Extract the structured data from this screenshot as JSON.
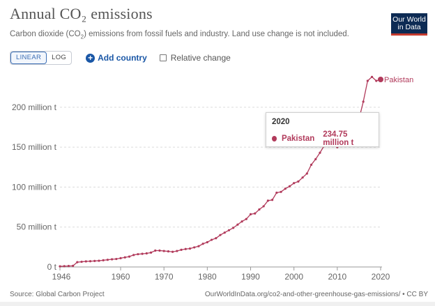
{
  "header": {
    "title": "Annual CO₂ emissions",
    "subtitle_before": "Carbon dioxide (CO",
    "subtitle_sub": "2",
    "subtitle_after": ") emissions from fossil fuels and industry. Land use change is not included.",
    "logo_line1": "Our World",
    "logo_line2": "in Data",
    "logo_colors": {
      "background": "#0d2b54",
      "accent": "#c53b2e"
    }
  },
  "controls": {
    "linear_label": "LINEAR",
    "log_label": "LOG",
    "add_country_label": "Add country",
    "relative_label": "Relative change",
    "add_icon": "plus-circle-icon"
  },
  "tooltip": {
    "year": "2020",
    "entity": "Pakistan",
    "value": "234.75 million t"
  },
  "footer": {
    "source": "Source: Global Carbon Project",
    "url": "OurWorldInData.org/co2-and-other-greenhouse-gas-emissions/ • CC BY"
  },
  "chart_data": {
    "type": "line",
    "xlim": [
      1946,
      2020
    ],
    "ylim": [
      0,
      240
    ],
    "x_ticks": [
      1946,
      1960,
      1970,
      1980,
      1990,
      2000,
      2010,
      2020
    ],
    "y_ticks": [
      0,
      50,
      100,
      150,
      200
    ],
    "y_tick_labels": [
      "0 t",
      "50 million t",
      "100 million t",
      "150 million t",
      "200 million t"
    ],
    "grid": "horizontal-dashed",
    "line_color": "#b13a5b",
    "series": [
      {
        "name": "Pakistan",
        "x": [
          1946,
          1947,
          1948,
          1949,
          1950,
          1951,
          1952,
          1953,
          1954,
          1955,
          1956,
          1957,
          1958,
          1959,
          1960,
          1961,
          1962,
          1963,
          1964,
          1965,
          1966,
          1967,
          1968,
          1969,
          1970,
          1971,
          1972,
          1973,
          1974,
          1975,
          1976,
          1977,
          1978,
          1979,
          1980,
          1981,
          1982,
          1983,
          1984,
          1985,
          1986,
          1987,
          1988,
          1989,
          1990,
          1991,
          1992,
          1993,
          1994,
          1995,
          1996,
          1997,
          1998,
          1999,
          2000,
          2001,
          2002,
          2003,
          2004,
          2005,
          2006,
          2007,
          2008,
          2009,
          2010,
          2011,
          2012,
          2013,
          2014,
          2015,
          2016,
          2017,
          2018,
          2019,
          2020
        ],
        "y": [
          0.8,
          1.0,
          1.2,
          1.4,
          6.0,
          6.5,
          7.0,
          7.2,
          7.5,
          7.8,
          8.4,
          9.0,
          9.6,
          10.0,
          11.0,
          12.0,
          13.0,
          15.0,
          16.0,
          16.5,
          17.0,
          18.0,
          20.5,
          20.5,
          20.0,
          19.5,
          19.0,
          20.0,
          21.5,
          22.5,
          23.0,
          24.5,
          26.0,
          29.0,
          31.0,
          34.0,
          36.0,
          40.0,
          43.0,
          46.0,
          49.0,
          53.0,
          57.0,
          60.0,
          66.0,
          67.0,
          72.0,
          76.0,
          83.0,
          84.0,
          93.0,
          94.0,
          98.0,
          101.0,
          105.0,
          107.0,
          112.0,
          117.0,
          128.0,
          135.0,
          143.0,
          152.0,
          156.0,
          158.0,
          150.0,
          155.0,
          157.0,
          160.0,
          172.0,
          185.0,
          207.0,
          233.0,
          238.0,
          233.0,
          234.75
        ]
      }
    ]
  }
}
